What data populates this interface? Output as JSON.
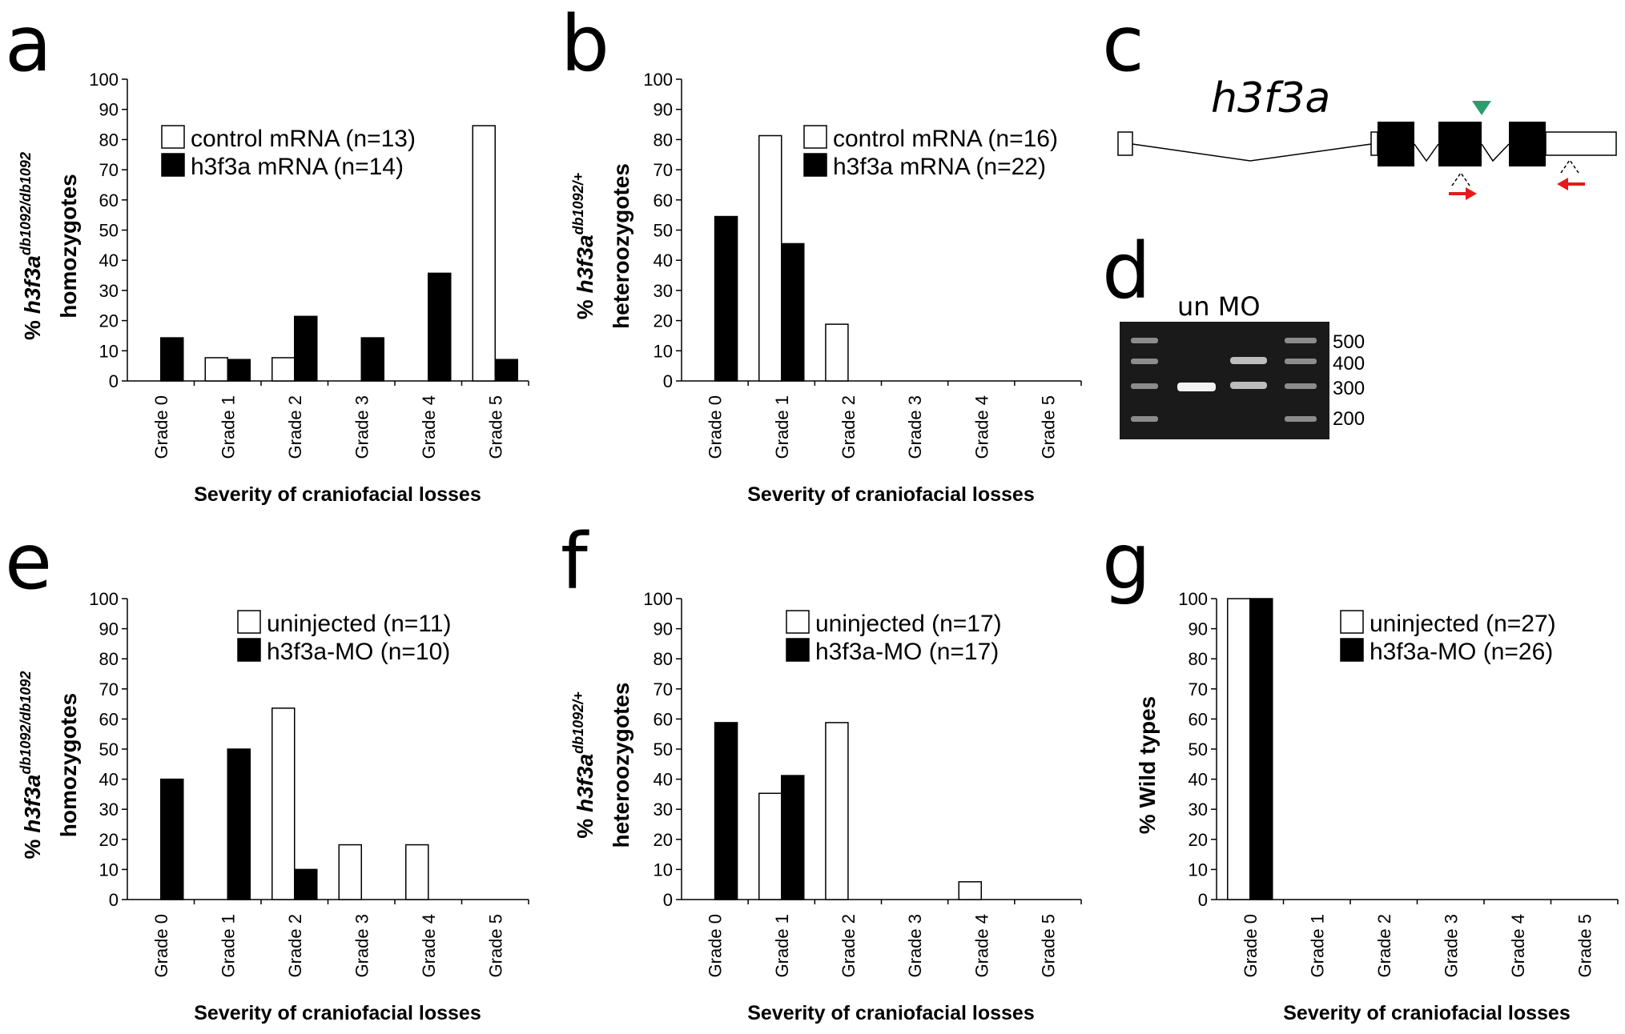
{
  "panels": {
    "a": "a",
    "b": "b",
    "c": "c",
    "d": "d",
    "e": "e",
    "f": "f",
    "g": "g"
  },
  "chart_data": [
    {
      "id": "a",
      "type": "bar",
      "categories": [
        "Grade 0",
        "Grade 1",
        "Grade 2",
        "Grade 3",
        "Grade 4",
        "Grade 5"
      ],
      "series": [
        {
          "name": "control mRNA (n=13)",
          "color": "#ffffff",
          "values": [
            0,
            7.7,
            7.7,
            0,
            0,
            84.6
          ]
        },
        {
          "name": "h3f3a mRNA (n=14)",
          "color": "#000000",
          "values": [
            14.3,
            7.1,
            21.4,
            14.3,
            35.7,
            7.1
          ]
        }
      ],
      "ylim": [
        0,
        100
      ],
      "yticks": [
        0,
        10,
        20,
        30,
        40,
        50,
        60,
        70,
        80,
        90,
        100
      ],
      "xlabel": "Severity of craniofacial losses",
      "ylabel": {
        "prefix": "% ",
        "gene": "h3f3a",
        "sup": "db1092/db1092",
        "line2": "homozygotes"
      }
    },
    {
      "id": "b",
      "type": "bar",
      "categories": [
        "Grade 0",
        "Grade 1",
        "Grade 2",
        "Grade 3",
        "Grade 4",
        "Grade 5"
      ],
      "series": [
        {
          "name": "control mRNA (n=16)",
          "color": "#ffffff",
          "values": [
            0,
            81.3,
            18.8,
            0,
            0,
            0
          ]
        },
        {
          "name": "h3f3a mRNA (n=22)",
          "color": "#000000",
          "values": [
            54.5,
            45.5,
            0,
            0,
            0,
            0
          ]
        }
      ],
      "ylim": [
        0,
        100
      ],
      "yticks": [
        0,
        10,
        20,
        30,
        40,
        50,
        60,
        70,
        80,
        90,
        100
      ],
      "xlabel": "Severity of craniofacial losses",
      "ylabel": {
        "prefix": "% ",
        "gene": "h3f3a",
        "sup": "db1092/+",
        "line2": "heteroozygotes"
      }
    },
    {
      "id": "e",
      "type": "bar",
      "categories": [
        "Grade 0",
        "Grade 1",
        "Grade 2",
        "Grade 3",
        "Grade 4",
        "Grade 5"
      ],
      "series": [
        {
          "name": "uninjected (n=11)",
          "color": "#ffffff",
          "values": [
            0,
            0,
            63.6,
            18.2,
            18.2,
            0
          ]
        },
        {
          "name": "h3f3a-MO (n=10)",
          "color": "#000000",
          "values": [
            40,
            50,
            10,
            0,
            0,
            0
          ]
        }
      ],
      "ylim": [
        0,
        100
      ],
      "yticks": [
        0,
        10,
        20,
        30,
        40,
        50,
        60,
        70,
        80,
        90,
        100
      ],
      "xlabel": "Severity of craniofacial losses",
      "ylabel": {
        "prefix": "% ",
        "gene": "h3f3a",
        "sup": "db1092/db1092",
        "line2": "homozygotes"
      }
    },
    {
      "id": "f",
      "type": "bar",
      "categories": [
        "Grade 0",
        "Grade 1",
        "Grade 2",
        "Grade 3",
        "Grade 4",
        "Grade 5"
      ],
      "series": [
        {
          "name": "uninjected (n=17)",
          "color": "#ffffff",
          "values": [
            0,
            35.3,
            58.8,
            0,
            5.9,
            0
          ]
        },
        {
          "name": "h3f3a-MO (n=17)",
          "color": "#000000",
          "values": [
            58.8,
            41.2,
            0,
            0,
            0,
            0
          ]
        }
      ],
      "ylim": [
        0,
        100
      ],
      "yticks": [
        0,
        10,
        20,
        30,
        40,
        50,
        60,
        70,
        80,
        90,
        100
      ],
      "xlabel": "Severity of craniofacial losses",
      "ylabel": {
        "prefix": "% ",
        "gene": "h3f3a",
        "sup": "db1092/+",
        "line2": "heteroozygotes"
      }
    },
    {
      "id": "g",
      "type": "bar",
      "categories": [
        "Grade 0",
        "Grade 1",
        "Grade 2",
        "Grade 3",
        "Grade 4",
        "Grade 5"
      ],
      "series": [
        {
          "name": "uninjected (n=27)",
          "color": "#ffffff",
          "values": [
            100,
            0,
            0,
            0,
            0,
            0
          ]
        },
        {
          "name": "h3f3a-MO (n=26)",
          "color": "#000000",
          "values": [
            100,
            0,
            0,
            0,
            0,
            0
          ]
        }
      ],
      "ylim": [
        0,
        100
      ],
      "yticks": [
        0,
        10,
        20,
        30,
        40,
        50,
        60,
        70,
        80,
        90,
        100
      ],
      "xlabel": "Severity of craniofacial losses",
      "ylabel": {
        "prefix": "% Wild types"
      }
    }
  ],
  "gene_diagram": {
    "gene_name": "h3f3a",
    "arrowhead_color": "#2a9d6f",
    "primer_color": "#e31b1b"
  },
  "gel": {
    "lane_labels": "un MO",
    "ladder_sizes": [
      "500",
      "400",
      "300",
      "200"
    ]
  }
}
